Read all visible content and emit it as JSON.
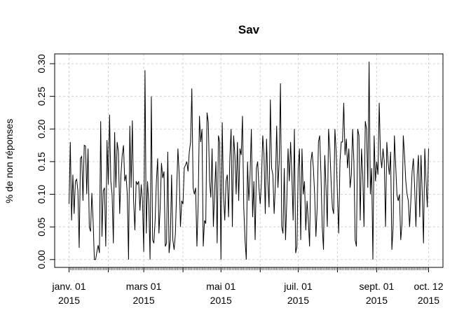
{
  "chart_data": {
    "type": "line",
    "title": "Sav",
    "y_label": "% de non réponses",
    "x": [
      "2015-01-01",
      "2015-01-02",
      "2015-01-03",
      "2015-01-04",
      "2015-01-05",
      "2015-01-06",
      "2015-01-07",
      "2015-01-08",
      "2015-01-09",
      "2015-01-10",
      "2015-01-11",
      "2015-01-12",
      "2015-01-13",
      "2015-01-14",
      "2015-01-15",
      "2015-01-16",
      "2015-01-17",
      "2015-01-18",
      "2015-01-19",
      "2015-01-20",
      "2015-01-21",
      "2015-01-22",
      "2015-01-23",
      "2015-01-24",
      "2015-01-25",
      "2015-01-26",
      "2015-01-27",
      "2015-01-28",
      "2015-01-29",
      "2015-01-30",
      "2015-01-31",
      "2015-02-01",
      "2015-02-02",
      "2015-02-03",
      "2015-02-04",
      "2015-02-05",
      "2015-02-06",
      "2015-02-07",
      "2015-02-08",
      "2015-02-09",
      "2015-02-10",
      "2015-02-11",
      "2015-02-12",
      "2015-02-13",
      "2015-02-14",
      "2015-02-15",
      "2015-02-16",
      "2015-02-17",
      "2015-02-18",
      "2015-02-19",
      "2015-02-20",
      "2015-02-21",
      "2015-02-22",
      "2015-02-23",
      "2015-02-24",
      "2015-02-25",
      "2015-02-26",
      "2015-02-27",
      "2015-02-28",
      "2015-03-01",
      "2015-03-02",
      "2015-03-03",
      "2015-03-04",
      "2015-03-05",
      "2015-03-06",
      "2015-03-07",
      "2015-03-08",
      "2015-03-09",
      "2015-03-10",
      "2015-03-11",
      "2015-03-12",
      "2015-03-13",
      "2015-03-14",
      "2015-03-15",
      "2015-03-16",
      "2015-03-17",
      "2015-03-18",
      "2015-03-19",
      "2015-03-20",
      "2015-03-21",
      "2015-03-22",
      "2015-03-23",
      "2015-03-24",
      "2015-03-25",
      "2015-03-26",
      "2015-03-27",
      "2015-03-28",
      "2015-03-29",
      "2015-03-30",
      "2015-03-31",
      "2015-04-01",
      "2015-04-02",
      "2015-04-03",
      "2015-04-04",
      "2015-04-05",
      "2015-04-06",
      "2015-04-07",
      "2015-04-08",
      "2015-04-09",
      "2015-04-10",
      "2015-04-11",
      "2015-04-12",
      "2015-04-13",
      "2015-04-14",
      "2015-04-15",
      "2015-04-16",
      "2015-04-17",
      "2015-04-18",
      "2015-04-19",
      "2015-04-20",
      "2015-04-21",
      "2015-04-22",
      "2015-04-23",
      "2015-04-24",
      "2015-04-25",
      "2015-04-26",
      "2015-04-27",
      "2015-04-28",
      "2015-04-29",
      "2015-04-30",
      "2015-05-01",
      "2015-05-02",
      "2015-05-03",
      "2015-05-04",
      "2015-05-05",
      "2015-05-06",
      "2015-05-07",
      "2015-05-08",
      "2015-05-09",
      "2015-05-10",
      "2015-05-11",
      "2015-05-12",
      "2015-05-13",
      "2015-05-14",
      "2015-05-15",
      "2015-05-16",
      "2015-05-17",
      "2015-05-18",
      "2015-05-19",
      "2015-05-20",
      "2015-05-21",
      "2015-05-22",
      "2015-05-23",
      "2015-05-24",
      "2015-05-25",
      "2015-05-26",
      "2015-05-27",
      "2015-05-28",
      "2015-05-29",
      "2015-05-30",
      "2015-05-31",
      "2015-06-01",
      "2015-06-02",
      "2015-06-03",
      "2015-06-04",
      "2015-06-05",
      "2015-06-06",
      "2015-06-07",
      "2015-06-08",
      "2015-06-09",
      "2015-06-10",
      "2015-06-11",
      "2015-06-12",
      "2015-06-13",
      "2015-06-14",
      "2015-06-15",
      "2015-06-16",
      "2015-06-17",
      "2015-06-18",
      "2015-06-19",
      "2015-06-20",
      "2015-06-21",
      "2015-06-22",
      "2015-06-23",
      "2015-06-24",
      "2015-06-25",
      "2015-06-26",
      "2015-06-27",
      "2015-06-28",
      "2015-06-29",
      "2015-06-30",
      "2015-07-01",
      "2015-07-02",
      "2015-07-03",
      "2015-07-04",
      "2015-07-05",
      "2015-07-06",
      "2015-07-07",
      "2015-07-08",
      "2015-07-09",
      "2015-07-10",
      "2015-07-11",
      "2015-07-12",
      "2015-07-13",
      "2015-07-14",
      "2015-07-15",
      "2015-07-16",
      "2015-07-17",
      "2015-07-18",
      "2015-07-19",
      "2015-07-20",
      "2015-07-21",
      "2015-07-22",
      "2015-07-23",
      "2015-07-24",
      "2015-07-25",
      "2015-07-26",
      "2015-07-27",
      "2015-07-28",
      "2015-07-29",
      "2015-07-30",
      "2015-07-31",
      "2015-08-01",
      "2015-08-02",
      "2015-08-03",
      "2015-08-04",
      "2015-08-05",
      "2015-08-06",
      "2015-08-07",
      "2015-08-08",
      "2015-08-09",
      "2015-08-10",
      "2015-08-11",
      "2015-08-12",
      "2015-08-13",
      "2015-08-14",
      "2015-08-15",
      "2015-08-16",
      "2015-08-17",
      "2015-08-18",
      "2015-08-19",
      "2015-08-20",
      "2015-08-21",
      "2015-08-22",
      "2015-08-23",
      "2015-08-24",
      "2015-08-25",
      "2015-08-26",
      "2015-08-27",
      "2015-08-28",
      "2015-08-29",
      "2015-08-30",
      "2015-08-31",
      "2015-09-01",
      "2015-09-02",
      "2015-09-03",
      "2015-09-04",
      "2015-09-05",
      "2015-09-06",
      "2015-09-07",
      "2015-09-08",
      "2015-09-09",
      "2015-09-10",
      "2015-09-11",
      "2015-09-12",
      "2015-09-13",
      "2015-09-14",
      "2015-09-15",
      "2015-09-16",
      "2015-09-17",
      "2015-09-18",
      "2015-09-19",
      "2015-09-20",
      "2015-09-21",
      "2015-09-22",
      "2015-09-23",
      "2015-09-24",
      "2015-09-25",
      "2015-09-26",
      "2015-09-27",
      "2015-09-28",
      "2015-09-29",
      "2015-09-30",
      "2015-10-01",
      "2015-10-02",
      "2015-10-03",
      "2015-10-04",
      "2015-10-05",
      "2015-10-06",
      "2015-10-07",
      "2015-10-08",
      "2015-10-09",
      "2015-10-10",
      "2015-10-11",
      "2015-10-12"
    ],
    "values": [
      0.085,
      0.18,
      0.06,
      0.13,
      0.07,
      0.12,
      0.123,
      0.105,
      0.018,
      0.155,
      0.158,
      0.09,
      0.175,
      0.174,
      0.1,
      0.17,
      0.05,
      0.043,
      0.102,
      0.06,
      0.0,
      0.0,
      0.012,
      0.022,
      0.01,
      0.212,
      0.035,
      0.105,
      0.11,
      0.02,
      0.183,
      0.115,
      0.222,
      0.12,
      0.1,
      0.025,
      0.195,
      0.11,
      0.18,
      0.165,
      0.07,
      0.13,
      0.16,
      0.175,
      0.12,
      0.13,
      0.1,
      0.0,
      0.205,
      0.11,
      0.213,
      0.09,
      0.045,
      0.12,
      0.115,
      0.12,
      0.075,
      0.115,
      0.09,
      0.012,
      0.29,
      0.04,
      0.12,
      0.085,
      0.0,
      0.25,
      0.03,
      0.025,
      0.06,
      0.12,
      0.155,
      0.04,
      0.08,
      0.148,
      0.125,
      0.135,
      0.02,
      0.025,
      0.165,
      0.01,
      0.03,
      0.13,
      0.03,
      0.015,
      0.04,
      0.105,
      0.17,
      0.13,
      0.05,
      0.09,
      0.085,
      0.14,
      0.145,
      0.15,
      0.135,
      0.165,
      0.18,
      0.262,
      0.11,
      0.1,
      0.11,
      0.02,
      0.085,
      0.22,
      0.18,
      0.2,
      0.02,
      0.06,
      0.055,
      0.225,
      0.21,
      0.12,
      0.095,
      0.17,
      0.05,
      0.105,
      0.15,
      0.025,
      0.19,
      0.18,
      0.0,
      0.21,
      0.1,
      0.06,
      0.12,
      0.13,
      0.065,
      0.155,
      0.2,
      0.05,
      0.19,
      0.16,
      0.1,
      0.18,
      0.09,
      0.17,
      0.16,
      0.22,
      0.08,
      0.03,
      0.0,
      0.15,
      0.09,
      0.13,
      0.2,
      0.065,
      0.12,
      0.03,
      0.14,
      0.15,
      0.11,
      0.085,
      0.12,
      0.19,
      0.16,
      0.07,
      0.185,
      0.12,
      0.08,
      0.245,
      0.14,
      0.13,
      0.07,
      0.115,
      0.205,
      0.11,
      0.15,
      0.27,
      0.05,
      0.04,
      0.14,
      0.03,
      0.09,
      0.17,
      0.12,
      0.18,
      0.13,
      0.06,
      0.2,
      0.01,
      0.02,
      0.14,
      0.17,
      0.03,
      0.17,
      0.1,
      0.12,
      0.045,
      0.09,
      0.06,
      0.02,
      0.15,
      0.165,
      0.14,
      0.1,
      0.035,
      0.08,
      0.18,
      0.19,
      0.13,
      0.05,
      0.015,
      0.16,
      0.11,
      0.05,
      0.2,
      0.17,
      0.12,
      0.08,
      0.07,
      0.2,
      0.165,
      0.1,
      0.04,
      0.15,
      0.18,
      0.18,
      0.24,
      0.16,
      0.185,
      0.14,
      0.17,
      0.11,
      0.13,
      0.2,
      0.15,
      0.03,
      0.02,
      0.2,
      0.19,
      0.06,
      0.17,
      0.13,
      0.05,
      0.212,
      0.2,
      0.11,
      0.303,
      0.1,
      0.14,
      0.0,
      0.19,
      0.12,
      0.15,
      0.13,
      0.24,
      0.16,
      0.14,
      0.17,
      0.15,
      0.05,
      0.18,
      0.15,
      0.13,
      0.165,
      0.015,
      0.05,
      0.19,
      0.145,
      0.1,
      0.09,
      0.1,
      0.03,
      0.055,
      0.19,
      0.16,
      0.12,
      0.1,
      0.09,
      0.05,
      0.09,
      0.135,
      0.155,
      0.11,
      0.05,
      0.13,
      0.16,
      0.065,
      0.16,
      0.1,
      0.025,
      0.17,
      0.12,
      0.08,
      0.17
    ],
    "color": "#000000",
    "ylim": [
      -0.012,
      0.315
    ],
    "yticks": [
      {
        "value": 0,
        "label": "0.00"
      },
      {
        "value": 0.05,
        "label": "0.05"
      },
      {
        "value": 0.1,
        "label": "0.10"
      },
      {
        "value": 0.15,
        "label": "0.15"
      },
      {
        "value": 0.2,
        "label": "0.20"
      },
      {
        "value": 0.25,
        "label": "0.25"
      },
      {
        "value": 0.3,
        "label": "0.30"
      }
    ],
    "xticks": [
      {
        "value": "2015-01-01",
        "label": [
          "janv. 01",
          "2015"
        ]
      },
      {
        "value": "2015-02-01",
        "label": null
      },
      {
        "value": "2015-03-01",
        "label": [
          "mars 01",
          "2015"
        ]
      },
      {
        "value": "2015-04-01",
        "label": null
      },
      {
        "value": "2015-05-01",
        "label": [
          "mai 01",
          "2015"
        ]
      },
      {
        "value": "2015-06-01",
        "label": null
      },
      {
        "value": "2015-07-01",
        "label": [
          "juil. 01",
          "2015"
        ]
      },
      {
        "value": "2015-08-01",
        "label": null
      },
      {
        "value": "2015-09-01",
        "label": [
          "sept. 01",
          "2015"
        ]
      },
      {
        "value": "2015-10-12",
        "label": [
          "oct. 12",
          "2015"
        ]
      }
    ],
    "grid": true
  }
}
